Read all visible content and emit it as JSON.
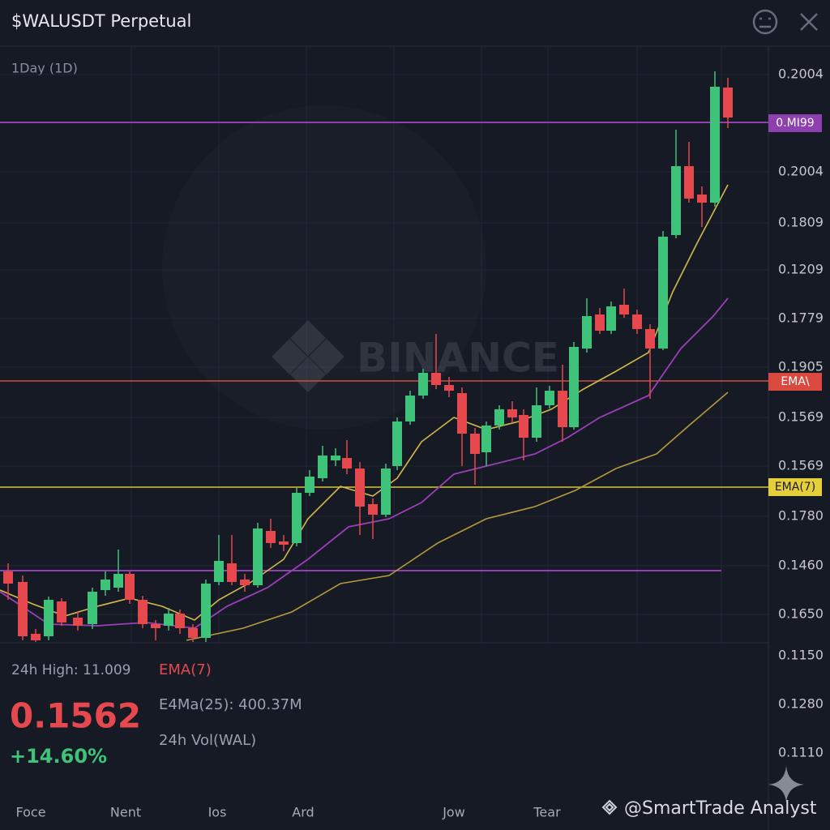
{
  "header": {
    "title": "$WALUSDT Perpetual"
  },
  "chart": {
    "interval": "1Day (1D)",
    "watermark": "BINANCE",
    "price_labels": [
      "0.2004",
      "0.2004",
      "0.1809",
      "0.1209",
      "0.1779",
      "0.1905",
      "0.1569",
      "0.1569",
      "0.1780",
      "0.1460",
      "0.1650",
      "0.1150",
      "0.1280",
      "0.1110"
    ],
    "line_tags": [
      "0.MI99",
      "EMA\\",
      "EMA(7)"
    ],
    "x_labels": [
      "Foce",
      "Nent",
      "Ios",
      "Ard",
      "Jow",
      "Tear"
    ]
  },
  "stats": {
    "high": "24h High: 11.009",
    "ema7": "EMA(7)",
    "ema25": "E4Ma(25): 400.37M",
    "vol": "24h Vol(WAL)",
    "price": "0.1562",
    "change": "+14.60%"
  },
  "credit": "@SmartTrade Analyst"
}
